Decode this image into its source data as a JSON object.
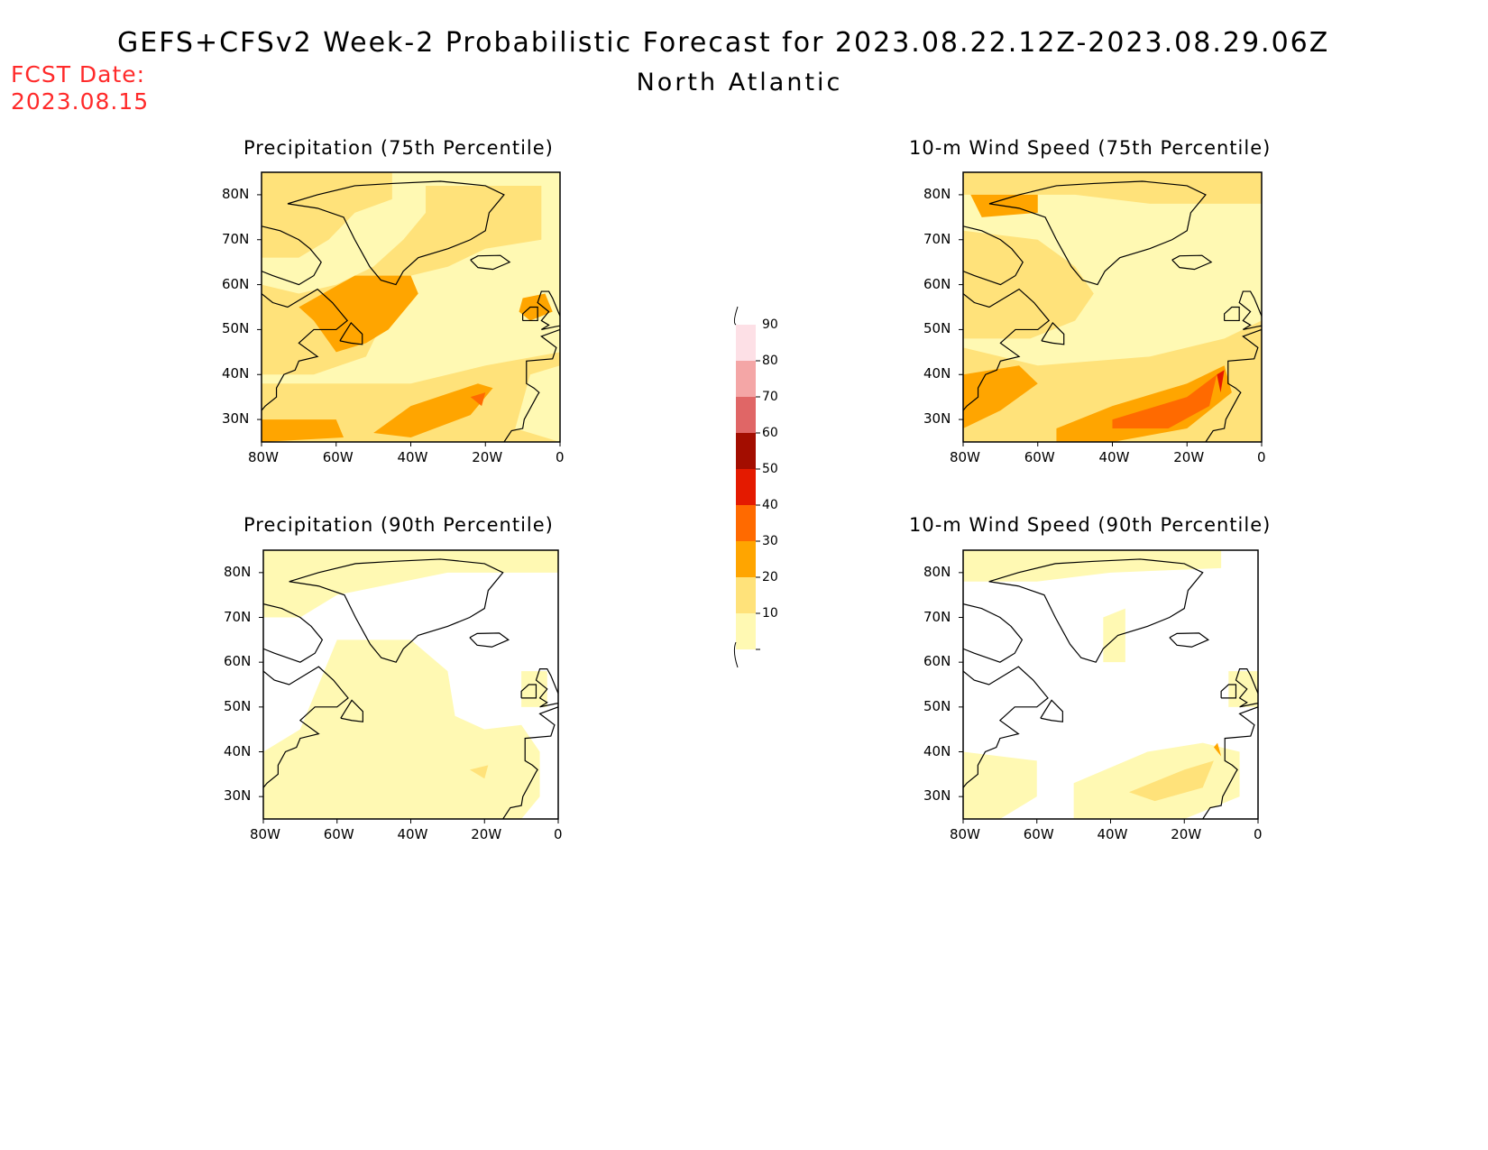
{
  "header": {
    "title": "GEFS+CFSv2 Week-2 Probabilistic Forecast for 2023.08.22.12Z-2023.08.29.06Z",
    "region": "North Atlantic",
    "fcst_label": "FCST Date:",
    "fcst_date": "2023.08.15"
  },
  "panels": [
    {
      "title": "Precipitation (75th Percentile)"
    },
    {
      "title": "10-m Wind Speed (75th Percentile)"
    },
    {
      "title": "Precipitation (90th Percentile)"
    },
    {
      "title": "10-m Wind Speed (90th Percentile)"
    }
  ],
  "axes": {
    "lat_labels": [
      "80N",
      "70N",
      "60N",
      "50N",
      "40N",
      "30N"
    ],
    "lon_labels": [
      "80W",
      "60W",
      "40W",
      "20W",
      "0"
    ]
  },
  "legend": {
    "levels": [
      "10",
      "20",
      "30",
      "40",
      "50",
      "60",
      "70",
      "80",
      "90"
    ],
    "colors": [
      "#fff9b3",
      "#ffe27a",
      "#ffa500",
      "#ff6a00",
      "#e41a00",
      "#a30d00",
      "#e06666",
      "#f4a6a6",
      "#fde0e6"
    ]
  }
}
